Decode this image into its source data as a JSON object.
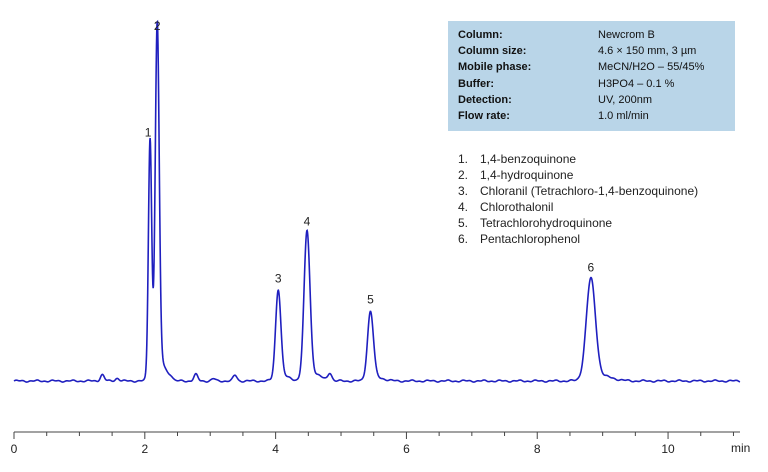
{
  "conditions": [
    {
      "key": "Column:",
      "value": "Newcrom B"
    },
    {
      "key": "Column size:",
      "value": "4.6 × 150  mm, 3 µm"
    },
    {
      "key": "Mobile phase:",
      "value": "MeCN/H2O – 55/45%"
    },
    {
      "key": "Buffer:",
      "value": "H3PO4 – 0.1 %"
    },
    {
      "key": "Detection:",
      "value": "UV, 200nm"
    },
    {
      "key": "Flow rate:",
      "value": "1.0 ml/min"
    }
  ],
  "legend": [
    {
      "num": "1.",
      "name": "1,4-benzoquinone"
    },
    {
      "num": "2.",
      "name": "1,4-hydroquinone"
    },
    {
      "num": "3.",
      "name": "Chloranil  (Tetrachloro-1,4-benzoquinone)"
    },
    {
      "num": "4.",
      "name": "Chlorothalonil"
    },
    {
      "num": "5.",
      "name": "Tetrachlorohydroquinone"
    },
    {
      "num": "6.",
      "name": "Pentachlorophenol"
    }
  ],
  "chart_data": {
    "type": "line",
    "title": "",
    "xlabel": "min",
    "ylabel": "",
    "xlim": [
      0,
      11.1
    ],
    "ylim": [
      0,
      1.0
    ],
    "xticks": [
      0,
      2,
      4,
      6,
      8,
      10
    ],
    "grid": false,
    "line_color": "#1f1fbf",
    "baseline": 0.0,
    "peaks": [
      {
        "label": "1",
        "rt": 2.08,
        "height": 0.66,
        "width": 0.025
      },
      {
        "label": "2",
        "rt": 2.19,
        "height": 0.96,
        "width": 0.03
      },
      {
        "label": "3",
        "rt": 4.04,
        "height": 0.25,
        "width": 0.04
      },
      {
        "label": "4",
        "rt": 4.48,
        "height": 0.41,
        "width": 0.045
      },
      {
        "label": "5",
        "rt": 5.45,
        "height": 0.19,
        "width": 0.045
      },
      {
        "label": "6",
        "rt": 8.82,
        "height": 0.28,
        "width": 0.07
      }
    ],
    "minor_peaks": [
      {
        "rt": 1.35,
        "height": 0.018
      },
      {
        "rt": 1.58,
        "height": 0.008
      },
      {
        "rt": 2.4,
        "height": 0.01
      },
      {
        "rt": 2.78,
        "height": 0.018
      },
      {
        "rt": 3.05,
        "height": 0.006
      },
      {
        "rt": 3.38,
        "height": 0.016
      },
      {
        "rt": 4.83,
        "height": 0.022
      }
    ]
  }
}
